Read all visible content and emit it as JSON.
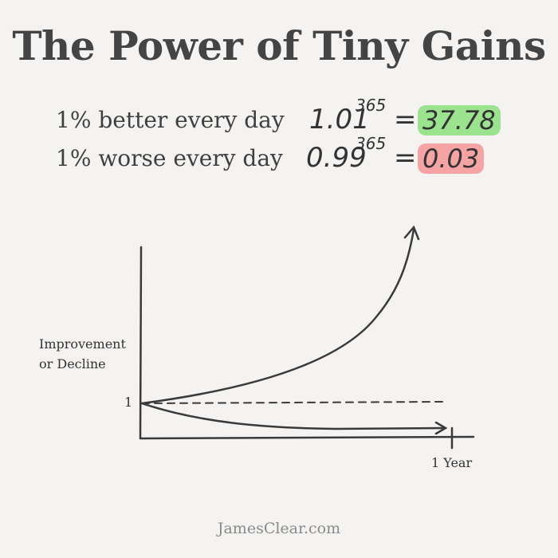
{
  "title": "The Power of Tiny Gains",
  "equations": [
    {
      "label": "1% better every day",
      "base": "1.01",
      "exponent": "365",
      "equals": "=",
      "result": "37.78",
      "highlight": "#9be38f"
    },
    {
      "label": "1% worse every day",
      "base": "0.99",
      "exponent": "365",
      "equals": "=",
      "result": "0.03",
      "highlight": "#f5a3a3"
    }
  ],
  "chart": {
    "ylabel_line1": "Improvement",
    "ylabel_line2": "or Decline",
    "y_tick": "1",
    "x_tick": "1 Year"
  },
  "footer": "JamesClear.com"
}
